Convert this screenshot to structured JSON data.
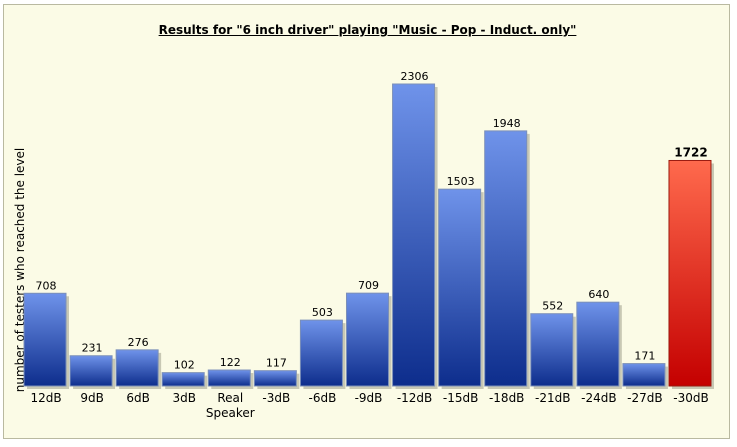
{
  "chart_data": {
    "type": "bar",
    "title": "Results for \"6 inch driver\" playing \"Music - Pop - Induct. only\"",
    "ylabel": "number of testers who reached the level",
    "xlabel": "",
    "categories": [
      [
        "12dB"
      ],
      [
        "9dB"
      ],
      [
        "6dB"
      ],
      [
        "3dB"
      ],
      [
        "Real",
        "Speaker"
      ],
      [
        "-3dB"
      ],
      [
        "-6dB"
      ],
      [
        "-9dB"
      ],
      [
        "-12dB"
      ],
      [
        "-15dB"
      ],
      [
        "-18dB"
      ],
      [
        "-21dB"
      ],
      [
        "-24dB"
      ],
      [
        "-27dB"
      ],
      [
        "-30dB"
      ]
    ],
    "values": [
      708,
      231,
      276,
      102,
      122,
      117,
      503,
      709,
      2306,
      1503,
      1948,
      552,
      640,
      171,
      1722
    ],
    "highlight_index": 14,
    "ylim": [
      0,
      2306
    ],
    "grid": false,
    "colors": {
      "bar_top": "#6f93ea",
      "bar_bottom": "#0d2d8c",
      "highlight_top": "#ff6a4d",
      "highlight_bottom": "#c40000",
      "background": "#fbfbe6"
    }
  }
}
